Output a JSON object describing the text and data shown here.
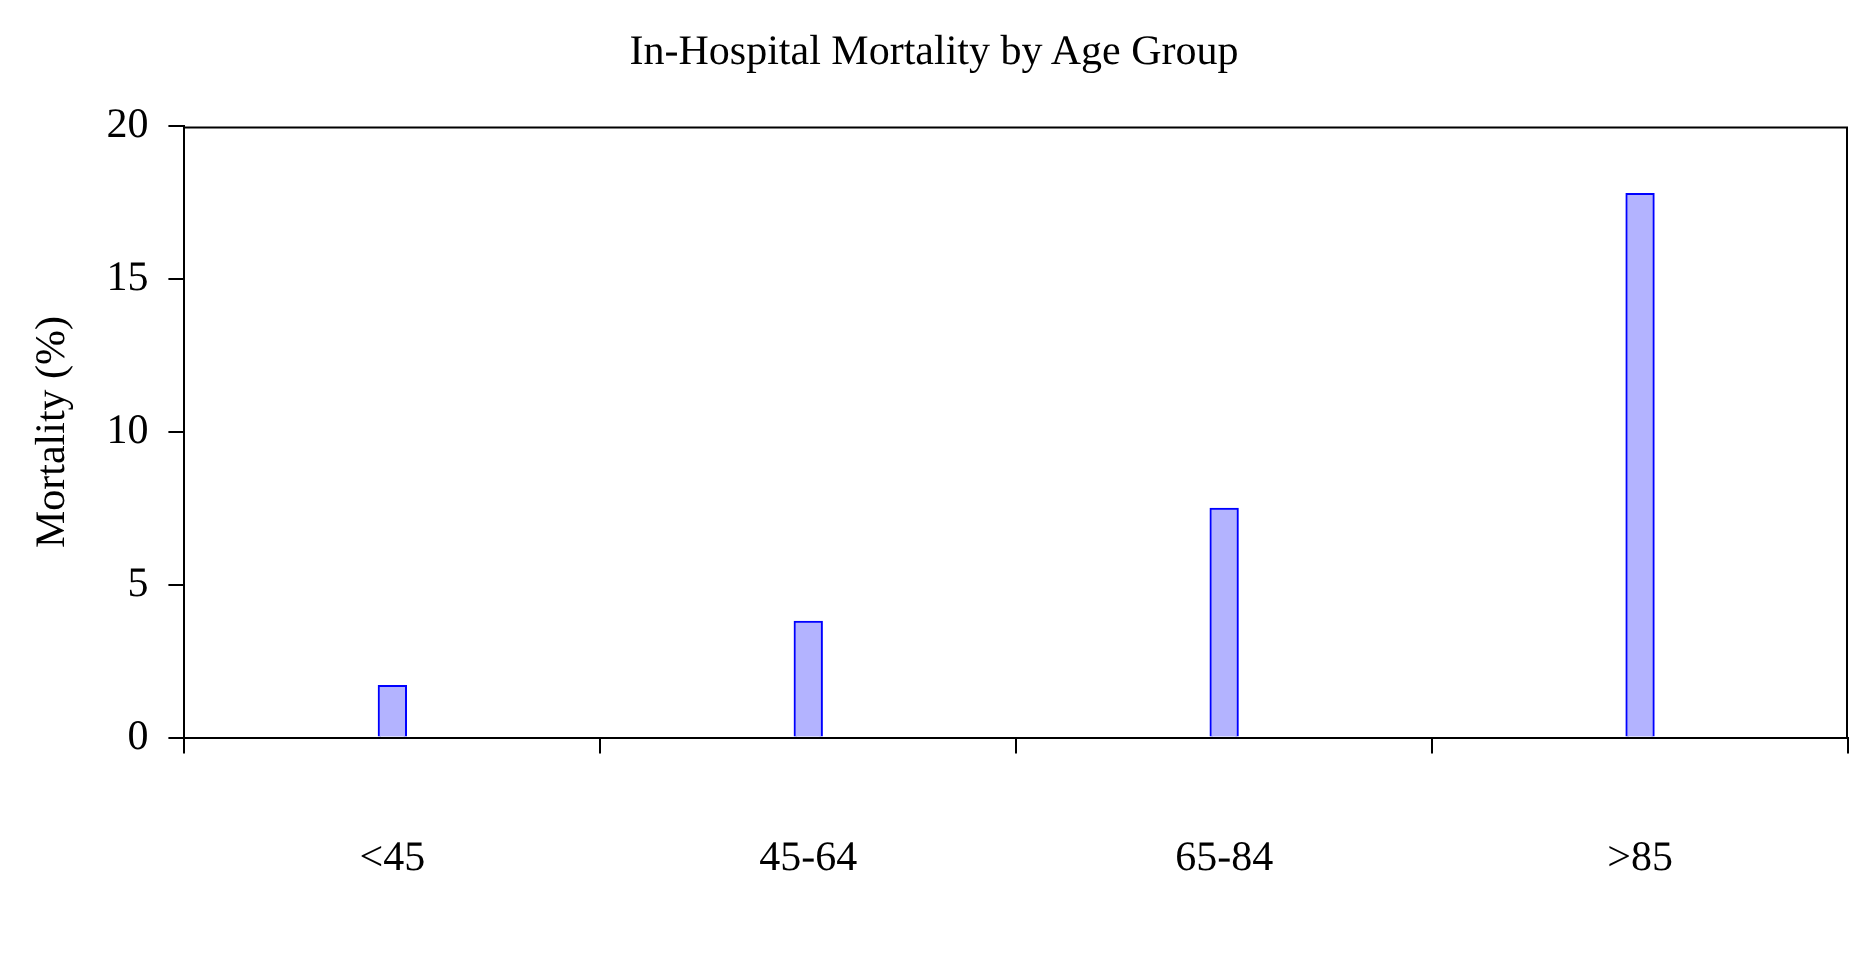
{
  "chart_data": {
    "type": "bar",
    "title": "In-Hospital Mortality by Age Group",
    "ylabel": "Mortality (%)",
    "categories": [
      "<45",
      "45-64",
      "65-84",
      ">85"
    ],
    "series": [
      {
        "color": "#b3b3ff",
        "values": [
          1.7,
          3.8,
          7.5,
          17.8
        ]
      }
    ],
    "ylim": [
      0,
      20
    ],
    "yticks": [
      0,
      5,
      10,
      15,
      20
    ],
    "grid": false,
    "legend": false
  }
}
